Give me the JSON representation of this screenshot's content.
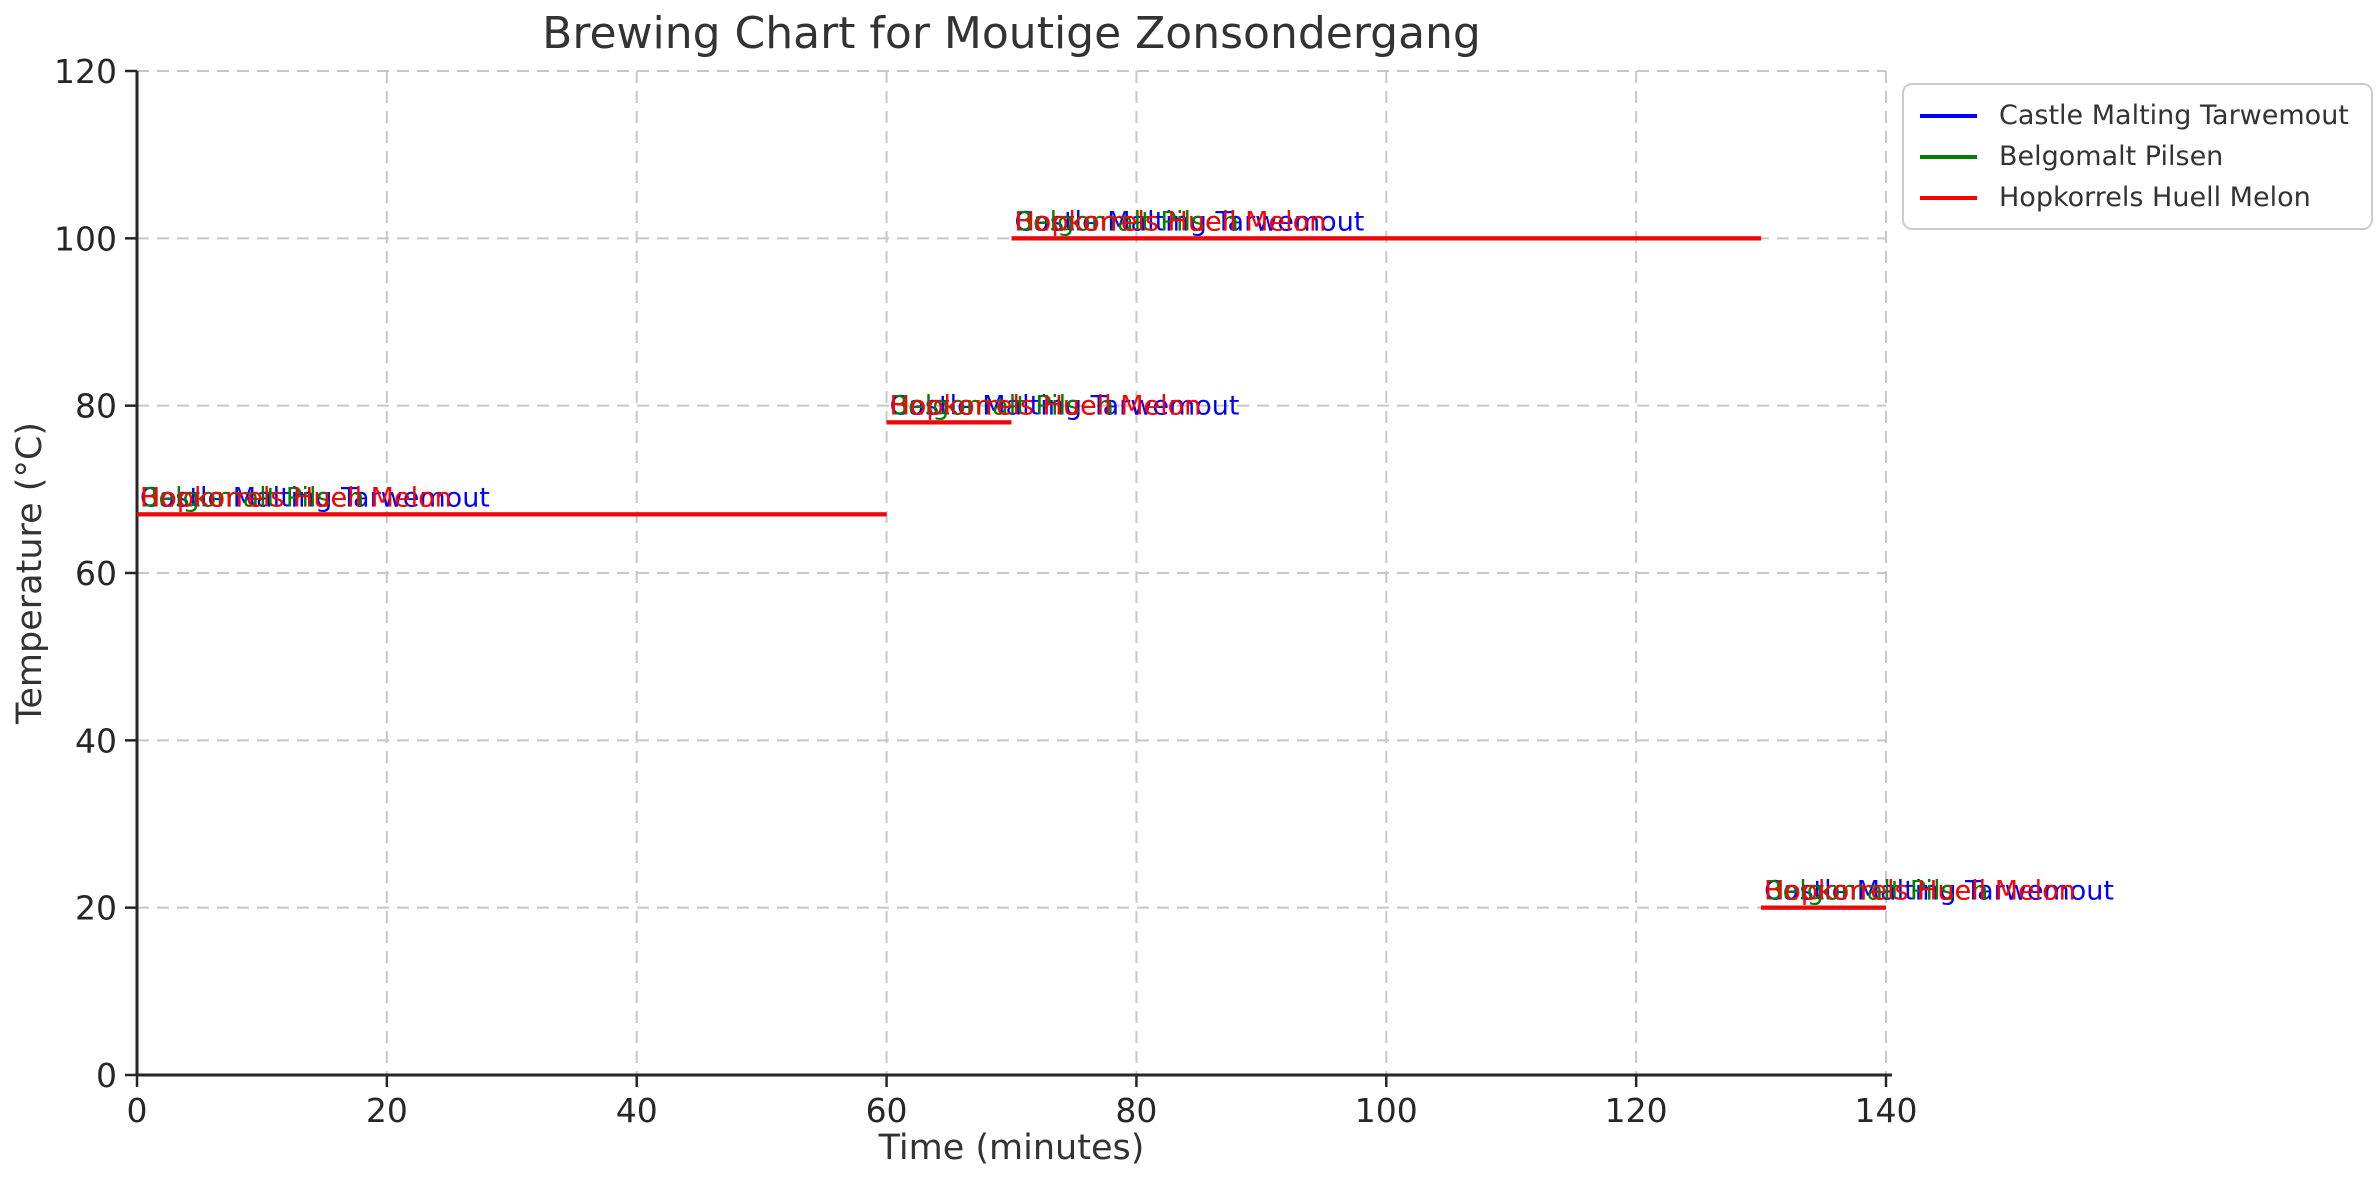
{
  "chart_data": {
    "type": "line",
    "subtype": "step-hlines",
    "title": "Brewing Chart for Moutige Zonsondergang",
    "xlabel": "Time (minutes)",
    "ylabel": "Temperature (°C)",
    "xlim": [
      0,
      140
    ],
    "ylim": [
      0,
      120
    ],
    "xticks": [
      0,
      20,
      40,
      60,
      80,
      100,
      120,
      140
    ],
    "yticks": [
      0,
      20,
      40,
      60,
      80,
      100,
      120
    ],
    "grid": {
      "visible": true,
      "linestyle": "dashed",
      "color": "#c8c8c8"
    },
    "axis_colors": {
      "spine": "#262626",
      "tick_label": "#262626",
      "text": "#333333"
    },
    "legend": {
      "position": "upper-right-outside",
      "entries": [
        {
          "label": "Castle Malting Tarwemout",
          "color": "#0000ff"
        },
        {
          "label": "Belgomalt Pilsen",
          "color": "#008000"
        },
        {
          "label": "Hopkorrels Huell Melon",
          "color": "#ff0000"
        }
      ]
    },
    "series": [
      {
        "name": "Castle Malting Tarwemout",
        "color": "#0000ff",
        "steps": [
          {
            "start_min": 0,
            "end_min": 60,
            "temp_c": 67
          },
          {
            "start_min": 60,
            "end_min": 70,
            "temp_c": 78
          },
          {
            "start_min": 70,
            "end_min": 130,
            "temp_c": 100
          },
          {
            "start_min": 130,
            "end_min": 140,
            "temp_c": 20
          }
        ]
      },
      {
        "name": "Belgomalt Pilsen",
        "color": "#008000",
        "steps": [
          {
            "start_min": 0,
            "end_min": 60,
            "temp_c": 67
          },
          {
            "start_min": 60,
            "end_min": 70,
            "temp_c": 78
          },
          {
            "start_min": 70,
            "end_min": 130,
            "temp_c": 100
          },
          {
            "start_min": 130,
            "end_min": 140,
            "temp_c": 20
          }
        ]
      },
      {
        "name": "Hopkorrels Huell Melon",
        "color": "#ff0000",
        "steps": [
          {
            "start_min": 0,
            "end_min": 60,
            "temp_c": 67
          },
          {
            "start_min": 60,
            "end_min": 70,
            "temp_c": 78
          },
          {
            "start_min": 70,
            "end_min": 130,
            "temp_c": 100
          },
          {
            "start_min": 130,
            "end_min": 140,
            "temp_c": 20
          }
        ]
      }
    ],
    "segment_annotations": "each segment start is labeled with every series name, overlapping in series color"
  }
}
